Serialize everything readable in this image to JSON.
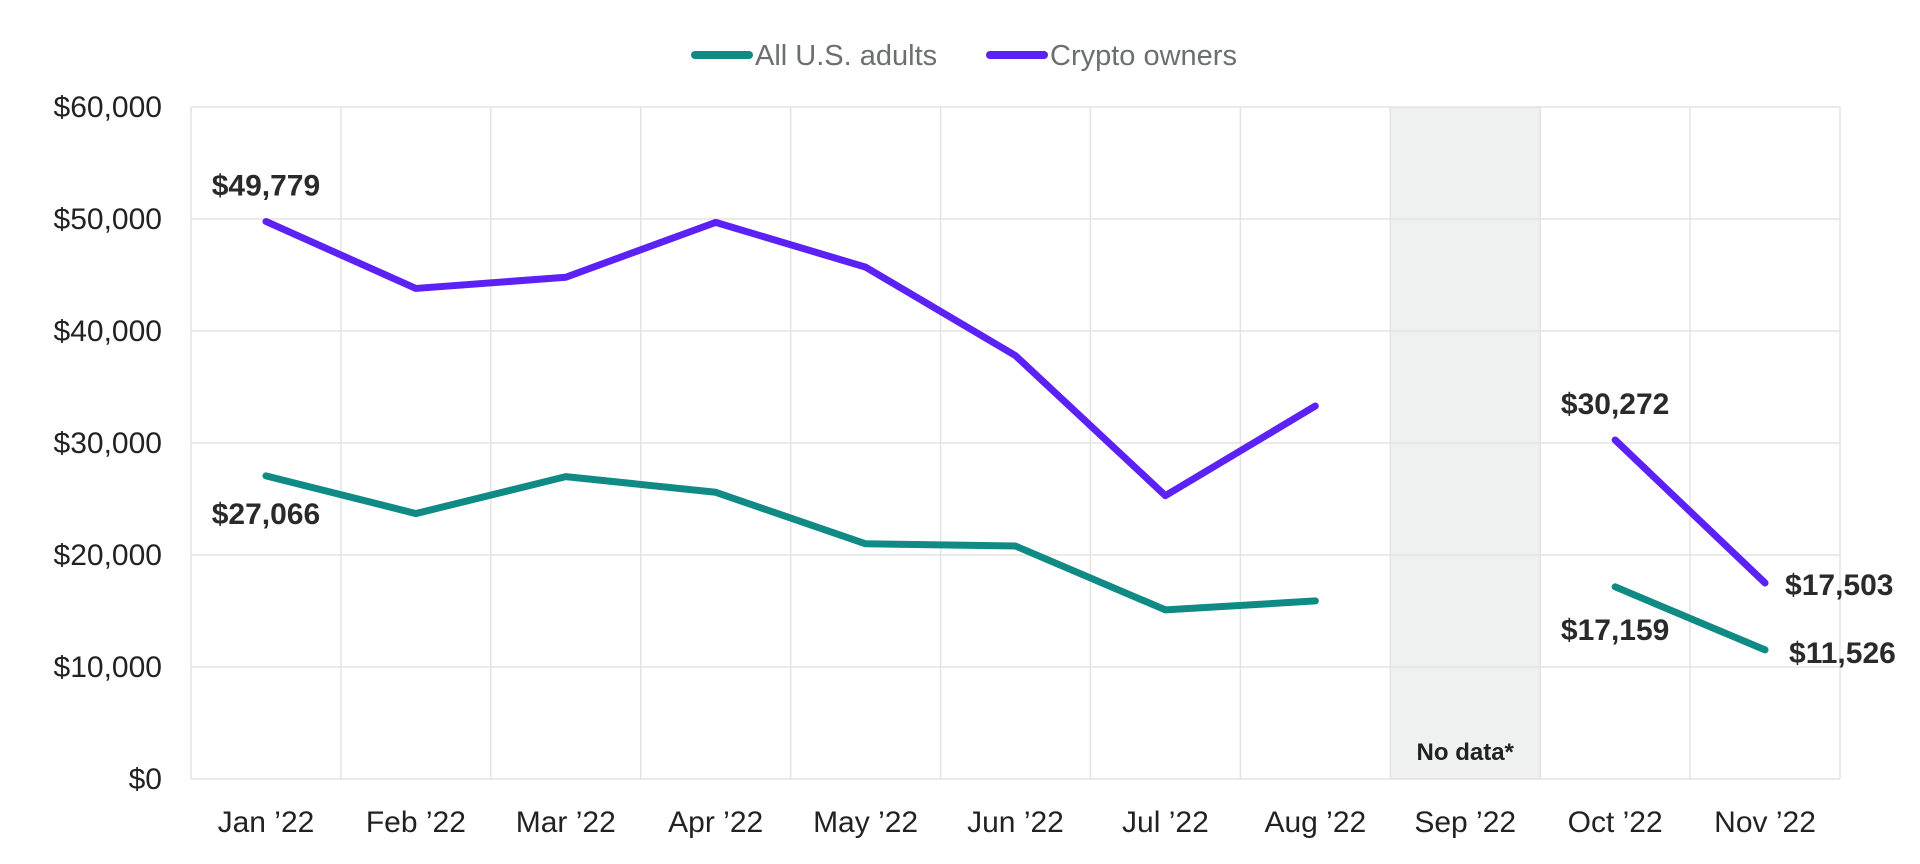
{
  "chart_data": {
    "type": "line",
    "categories": [
      "Jan ’22",
      "Feb ’22",
      "Mar ’22",
      "Apr ’22",
      "May ’22",
      "Jun ’22",
      "Jul ’22",
      "Aug ’22",
      "Sep ’22",
      "Oct ’22",
      "Nov ’22"
    ],
    "ylim": [
      0,
      60000
    ],
    "y_ticks": [
      "$0",
      "$10,000",
      "$20,000",
      "$30,000",
      "$40,000",
      "$50,000",
      "$60,000"
    ],
    "y_tick_values": [
      0,
      10000,
      20000,
      30000,
      40000,
      50000,
      60000
    ],
    "grid": true,
    "legend_position": "top-center",
    "series": [
      {
        "name": "All U.S. adults",
        "color": "#0f8a84",
        "values": [
          27066,
          23700,
          27000,
          25600,
          21000,
          20800,
          15100,
          15900,
          null,
          17159,
          11526
        ]
      },
      {
        "name": "Crypto owners",
        "color": "#5b21f5",
        "values": [
          49779,
          43800,
          44800,
          49700,
          45700,
          37800,
          25300,
          33300,
          null,
          30272,
          17503
        ]
      }
    ],
    "data_labels": [
      {
        "series": "Crypto owners",
        "index": 0,
        "text": "$49,779"
      },
      {
        "series": "All U.S. adults",
        "index": 0,
        "text": "$27,066"
      },
      {
        "series": "Crypto owners",
        "index": 9,
        "text": "$30,272"
      },
      {
        "series": "All U.S. adults",
        "index": 9,
        "text": "$17,159"
      },
      {
        "series": "Crypto owners",
        "index": 10,
        "text": "$17,503"
      },
      {
        "series": "All U.S. adults",
        "index": 10,
        "text": "$11,526"
      }
    ],
    "shaded_category_index": 8,
    "shaded_color": "#eff1f0",
    "annotation": "No data*"
  }
}
